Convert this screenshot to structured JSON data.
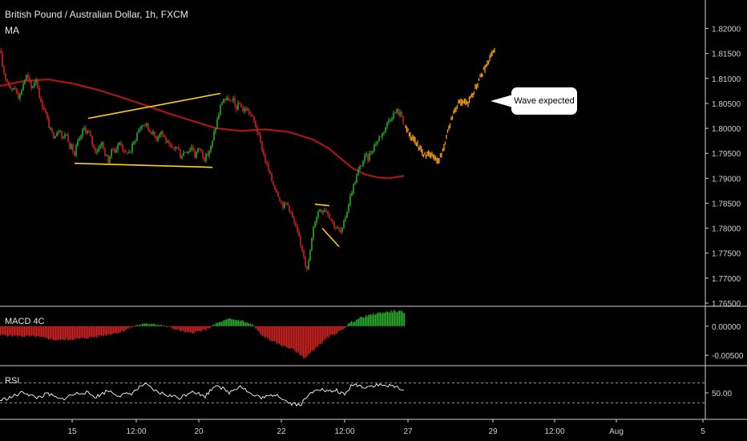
{
  "chart_title": "British Pound / Australian Dollar, 1h, FXCM",
  "ma_label": "MA",
  "macd_label": "MACD 4C",
  "rsi_label": "RSI",
  "annotation": "Wave expected",
  "colors": {
    "background": "#000000",
    "up_candle": "#2aa82a",
    "down_candle": "#cc2222",
    "ma_line": "#aa1616",
    "pattern_lines": "#ffd400",
    "projection": "#f79a16",
    "rsi_line": "#ffffff"
  },
  "chart_data": [
    {
      "type": "candlestick",
      "title": "British Pound / Australian Dollar, 1h, FXCM",
      "y_ticks": [
        "1.82000",
        "1.81500",
        "1.81000",
        "1.80500",
        "1.80000",
        "1.79500",
        "1.79000",
        "1.78500",
        "1.78000",
        "1.77500",
        "1.77000",
        "1.76500"
      ],
      "ylim": [
        1.765,
        1.8225
      ],
      "x_ticks": [
        "15",
        "12:00",
        "20",
        "22",
        "12:00",
        "27",
        "29",
        "12:00",
        "Aug",
        "5"
      ],
      "path_points": [
        [
          0,
          1.8155
        ],
        [
          3,
          1.8125
        ],
        [
          6,
          1.8105
        ],
        [
          9,
          1.8095
        ],
        [
          12,
          1.8085
        ],
        [
          15,
          1.8075
        ],
        [
          18,
          1.8085
        ],
        [
          21,
          1.8075
        ],
        [
          24,
          1.806
        ],
        [
          27,
          1.808
        ],
        [
          30,
          1.8095
        ],
        [
          33,
          1.8105
        ],
        [
          36,
          1.8095
        ],
        [
          39,
          1.808
        ],
        [
          42,
          1.809
        ],
        [
          45,
          1.81
        ],
        [
          48,
          1.8075
        ],
        [
          51,
          1.805
        ],
        [
          54,
          1.8045
        ],
        [
          57,
          1.803
        ],
        [
          60,
          1.801
        ],
        [
          63,
          1.7995
        ],
        [
          66,
          1.7985
        ],
        [
          69,
          1.799
        ],
        [
          72,
          1.7995
        ],
        [
          75,
          1.8
        ],
        [
          78,
          1.7975
        ],
        [
          81,
          1.799
        ],
        [
          84,
          1.7985
        ],
        [
          87,
          1.7965
        ],
        [
          90,
          1.796
        ],
        [
          93,
          1.7945
        ],
        [
          96,
          1.797
        ],
        [
          99,
          1.7975
        ],
        [
          102,
          1.799
        ],
        [
          105,
          1.8
        ],
        [
          108,
          1.7995
        ],
        [
          111,
          1.799
        ],
        [
          114,
          1.7975
        ],
        [
          117,
          1.796
        ],
        [
          120,
          1.7955
        ],
        [
          123,
          1.796
        ],
        [
          126,
          1.7975
        ],
        [
          129,
          1.796
        ],
        [
          132,
          1.7945
        ],
        [
          135,
          1.7935
        ],
        [
          138,
          1.795
        ],
        [
          141,
          1.796
        ],
        [
          144,
          1.7955
        ],
        [
          147,
          1.7965
        ],
        [
          150,
          1.7975
        ],
        [
          153,
          1.796
        ],
        [
          156,
          1.7945
        ],
        [
          159,
          1.7955
        ],
        [
          162,
          1.795
        ],
        [
          165,
          1.7965
        ],
        [
          168,
          1.7975
        ],
        [
          171,
          1.799
        ],
        [
          174,
          1.8
        ],
        [
          177,
          1.8005
        ],
        [
          180,
          1.801
        ],
        [
          183,
          1.8005
        ],
        [
          186,
          1.7995
        ],
        [
          189,
          1.7995
        ],
        [
          192,
          1.7985
        ],
        [
          195,
          1.798
        ],
        [
          198,
          1.799
        ],
        [
          201,
          1.7995
        ],
        [
          204,
          1.7985
        ],
        [
          207,
          1.7975
        ],
        [
          210,
          1.7965
        ],
        [
          213,
          1.796
        ],
        [
          216,
          1.7955
        ],
        [
          219,
          1.7965
        ],
        [
          222,
          1.796
        ],
        [
          225,
          1.7945
        ],
        [
          228,
          1.795
        ],
        [
          231,
          1.7955
        ],
        [
          234,
          1.7955
        ],
        [
          237,
          1.796
        ],
        [
          240,
          1.7965
        ],
        [
          243,
          1.7945
        ],
        [
          246,
          1.7955
        ],
        [
          249,
          1.796
        ],
        [
          252,
          1.795
        ],
        [
          255,
          1.794
        ],
        [
          258,
          1.7945
        ],
        [
          261,
          1.7955
        ],
        [
          264,
          1.7965
        ],
        [
          267,
          1.799
        ],
        [
          270,
          1.801
        ],
        [
          273,
          1.803
        ],
        [
          276,
          1.805
        ],
        [
          279,
          1.806
        ],
        [
          282,
          1.8055
        ],
        [
          285,
          1.806
        ],
        [
          288,
          1.805
        ],
        [
          291,
          1.8055
        ],
        [
          294,
          1.804
        ],
        [
          297,
          1.8045
        ],
        [
          300,
          1.805
        ],
        [
          303,
          1.8035
        ],
        [
          306,
          1.804
        ],
        [
          309,
          1.8035
        ],
        [
          312,
          1.803
        ],
        [
          315,
          1.802
        ],
        [
          318,
          1.801
        ],
        [
          321,
          1.7995
        ],
        [
          324,
          1.7975
        ],
        [
          327,
          1.796
        ],
        [
          330,
          1.794
        ],
        [
          333,
          1.7925
        ],
        [
          336,
          1.791
        ],
        [
          339,
          1.7895
        ],
        [
          342,
          1.7885
        ],
        [
          345,
          1.7875
        ],
        [
          348,
          1.7865
        ],
        [
          351,
          1.785
        ],
        [
          354,
          1.7845
        ],
        [
          357,
          1.785
        ],
        [
          360,
          1.7845
        ],
        [
          363,
          1.783
        ],
        [
          366,
          1.7815
        ],
        [
          369,
          1.78
        ],
        [
          372,
          1.7785
        ],
        [
          375,
          1.7765
        ],
        [
          378,
          1.7755
        ],
        [
          381,
          1.773
        ],
        [
          384,
          1.772
        ],
        [
          387,
          1.7755
        ],
        [
          390,
          1.779
        ],
        [
          393,
          1.7815
        ],
        [
          396,
          1.783
        ],
        [
          399,
          1.784
        ],
        [
          402,
          1.7835
        ],
        [
          405,
          1.784
        ],
        [
          408,
          1.7835
        ],
        [
          411,
          1.7825
        ],
        [
          414,
          1.7815
        ],
        [
          417,
          1.7805
        ],
        [
          420,
          1.78
        ],
        [
          423,
          1.7795
        ],
        [
          426,
          1.779
        ],
        [
          429,
          1.781
        ],
        [
          432,
          1.783
        ],
        [
          435,
          1.785
        ],
        [
          438,
          1.787
        ],
        [
          441,
          1.7885
        ],
        [
          444,
          1.79
        ],
        [
          447,
          1.7915
        ],
        [
          450,
          1.7925
        ],
        [
          453,
          1.7935
        ],
        [
          456,
          1.7945
        ],
        [
          459,
          1.794
        ],
        [
          462,
          1.795
        ],
        [
          465,
          1.796
        ],
        [
          468,
          1.797
        ],
        [
          471,
          1.7975
        ],
        [
          474,
          1.7985
        ],
        [
          477,
          1.799
        ],
        [
          480,
          1.8
        ],
        [
          483,
          1.801
        ],
        [
          486,
          1.802
        ],
        [
          489,
          1.8025
        ],
        [
          492,
          1.803
        ],
        [
          495,
          1.8035
        ],
        [
          498,
          1.803
        ],
        [
          501,
          1.8025
        ],
        [
          504,
          1.801
        ]
      ],
      "ma_points": [
        [
          0,
          1.8085
        ],
        [
          30,
          1.8095
        ],
        [
          60,
          1.8098
        ],
        [
          90,
          1.809
        ],
        [
          120,
          1.8078
        ],
        [
          150,
          1.8063
        ],
        [
          180,
          1.8047
        ],
        [
          210,
          1.803
        ],
        [
          240,
          1.8015
        ],
        [
          270,
          1.8
        ],
        [
          300,
          1.7995
        ],
        [
          330,
          1.7998
        ],
        [
          360,
          1.7993
        ],
        [
          390,
          1.7978
        ],
        [
          410,
          1.796
        ],
        [
          425,
          1.794
        ],
        [
          440,
          1.792
        ],
        [
          455,
          1.7908
        ],
        [
          470,
          1.7902
        ],
        [
          485,
          1.79
        ],
        [
          505,
          1.7905
        ]
      ],
      "pattern_lines": [
        {
          "from": [
            110,
            1.802
          ],
          "to": [
            275,
            1.807
          ]
        },
        {
          "from": [
            93,
            1.793
          ],
          "to": [
            265,
            1.7922
          ]
        },
        {
          "from": [
            393,
            1.7848
          ],
          "to": [
            411,
            1.7845
          ]
        },
        {
          "from": [
            402,
            1.78
          ],
          "to": [
            423,
            1.7763
          ]
        }
      ],
      "projection_points": [
        [
          506,
          1.8
        ],
        [
          512,
          1.7985
        ],
        [
          518,
          1.7975
        ],
        [
          524,
          1.796
        ],
        [
          530,
          1.7945
        ],
        [
          536,
          1.795
        ],
        [
          542,
          1.794
        ],
        [
          548,
          1.7935
        ],
        [
          554,
          1.796
        ],
        [
          560,
          1.8
        ],
        [
          566,
          1.803
        ],
        [
          572,
          1.805
        ],
        [
          578,
          1.8055
        ],
        [
          584,
          1.805
        ],
        [
          590,
          1.807
        ],
        [
          596,
          1.809
        ],
        [
          602,
          1.811
        ],
        [
          608,
          1.813
        ],
        [
          614,
          1.815
        ],
        [
          617,
          1.8155
        ]
      ]
    },
    {
      "type": "bar",
      "title": "MACD 4C",
      "y_ticks": [
        "0.00000",
        "-0.00500"
      ],
      "ylim": [
        -0.0065,
        0.003
      ],
      "anchors": [
        [
          0,
          -0.0015
        ],
        [
          20,
          -0.0017
        ],
        [
          45,
          -0.0018
        ],
        [
          70,
          -0.0024
        ],
        [
          95,
          -0.0022
        ],
        [
          120,
          -0.0018
        ],
        [
          150,
          -0.001
        ],
        [
          170,
          0.0002
        ],
        [
          190,
          0.0005
        ],
        [
          210,
          -0.0002
        ],
        [
          235,
          -0.0012
        ],
        [
          255,
          -0.0007
        ],
        [
          270,
          0.0005
        ],
        [
          285,
          0.0012
        ],
        [
          300,
          0.001
        ],
        [
          315,
          0.0002
        ],
        [
          325,
          -0.0015
        ],
        [
          345,
          -0.003
        ],
        [
          365,
          -0.004
        ],
        [
          380,
          -0.0055
        ],
        [
          395,
          -0.0035
        ],
        [
          410,
          -0.0018
        ],
        [
          425,
          -0.0008
        ],
        [
          435,
          0.0005
        ],
        [
          450,
          0.0015
        ],
        [
          470,
          0.0022
        ],
        [
          490,
          0.0026
        ],
        [
          505,
          0.0024
        ]
      ]
    },
    {
      "type": "line",
      "title": "RSI",
      "y_ticks": [
        "50.00"
      ],
      "ylim": [
        0,
        100
      ],
      "upper_band": 70,
      "lower_band": 30,
      "anchors": [
        [
          0,
          35
        ],
        [
          15,
          42
        ],
        [
          30,
          52
        ],
        [
          45,
          40
        ],
        [
          60,
          48
        ],
        [
          75,
          36
        ],
        [
          90,
          46
        ],
        [
          105,
          52
        ],
        [
          120,
          42
        ],
        [
          135,
          55
        ],
        [
          150,
          44
        ],
        [
          165,
          50
        ],
        [
          180,
          68
        ],
        [
          195,
          52
        ],
        [
          210,
          45
        ],
        [
          225,
          40
        ],
        [
          240,
          55
        ],
        [
          255,
          42
        ],
        [
          270,
          68
        ],
        [
          285,
          50
        ],
        [
          300,
          65
        ],
        [
          315,
          45
        ],
        [
          330,
          40
        ],
        [
          345,
          48
        ],
        [
          360,
          30
        ],
        [
          375,
          26
        ],
        [
          385,
          45
        ],
        [
          395,
          60
        ],
        [
          410,
          52
        ],
        [
          420,
          55
        ],
        [
          430,
          45
        ],
        [
          440,
          68
        ],
        [
          455,
          62
        ],
        [
          470,
          66
        ],
        [
          485,
          64
        ],
        [
          500,
          60
        ],
        [
          505,
          52
        ]
      ]
    }
  ]
}
